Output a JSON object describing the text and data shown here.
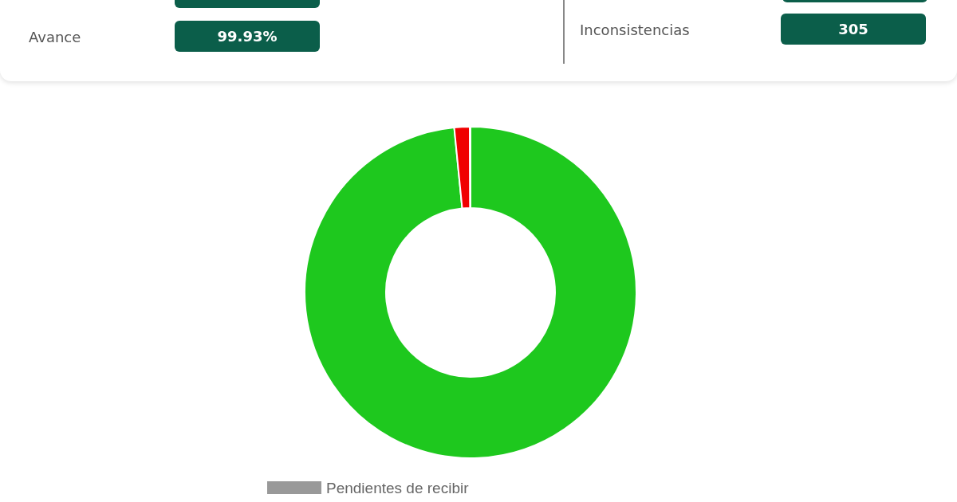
{
  "chart_data": {
    "type": "donut",
    "categories": [
      null,
      null,
      "Pendientes de recibir"
    ],
    "values": [
      98.43,
      1.5,
      0.07
    ],
    "colors": [
      "#1ec81e",
      "#f00000",
      "#999999"
    ],
    "legend": "bottom",
    "annotations": [
      "Avance",
      "99.93%",
      "Inconsistencias",
      "305"
    ]
  }
}
